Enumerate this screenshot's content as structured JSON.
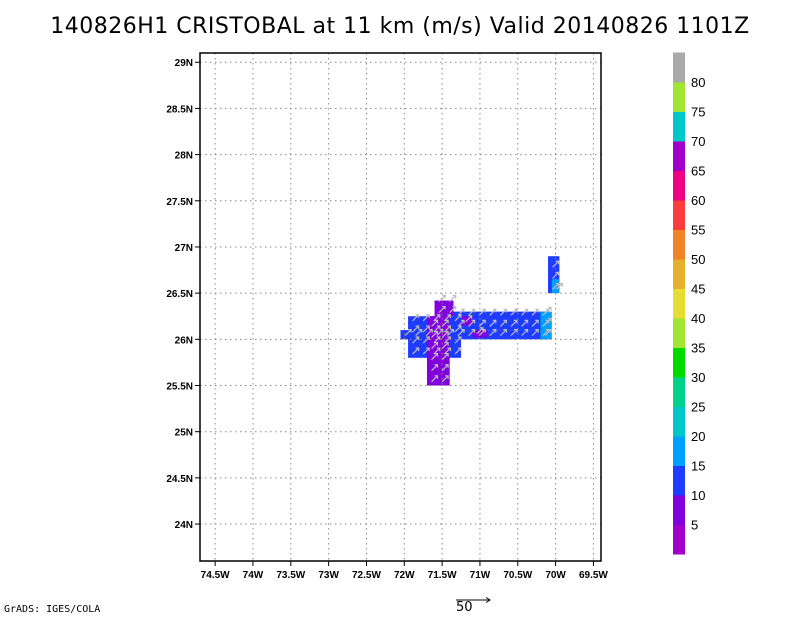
{
  "title": "140826H1 CRISTOBAL at 11 km (m/s) Valid 20140826 1101Z",
  "footer": "GrADS: IGES/COLA",
  "reference_vector_label": "50",
  "chart_data": {
    "type": "heatmap",
    "title": "140826H1 CRISTOBAL at 11 km (m/s) Valid 20140826 1101Z",
    "xlabel": "",
    "ylabel": "",
    "lon_range": [
      -74.7,
      -69.4
    ],
    "lat_range": [
      23.6,
      29.1
    ],
    "x_ticks": [
      {
        "lon": -74.5,
        "label": "74.5W"
      },
      {
        "lon": -74.0,
        "label": "74W"
      },
      {
        "lon": -73.5,
        "label": "73.5W"
      },
      {
        "lon": -73.0,
        "label": "73W"
      },
      {
        "lon": -72.5,
        "label": "72.5W"
      },
      {
        "lon": -72.0,
        "label": "72W"
      },
      {
        "lon": -71.5,
        "label": "71.5W"
      },
      {
        "lon": -71.0,
        "label": "71W"
      },
      {
        "lon": -70.5,
        "label": "70.5W"
      },
      {
        "lon": -70.0,
        "label": "70W"
      },
      {
        "lon": -69.5,
        "label": "69.5W"
      }
    ],
    "y_ticks": [
      {
        "lat": 24.0,
        "label": "24N"
      },
      {
        "lat": 24.5,
        "label": "24.5N"
      },
      {
        "lat": 25.0,
        "label": "25N"
      },
      {
        "lat": 25.5,
        "label": "25.5N"
      },
      {
        "lat": 26.0,
        "label": "26N"
      },
      {
        "lat": 26.5,
        "label": "26.5N"
      },
      {
        "lat": 27.0,
        "label": "27N"
      },
      {
        "lat": 27.5,
        "label": "27.5N"
      },
      {
        "lat": 28.0,
        "label": "28N"
      },
      {
        "lat": 28.5,
        "label": "28.5N"
      },
      {
        "lat": 29.0,
        "label": "29N"
      }
    ],
    "grid": "dotted",
    "colorbar": {
      "position": "right",
      "colors": [
        "#a000c8",
        "#8200dc",
        "#1e3cff",
        "#00a0ff",
        "#00c8c8",
        "#00d28c",
        "#00dc00",
        "#a0e632",
        "#e6dc32",
        "#e6af2d",
        "#f08228",
        "#fa3c3c",
        "#f00082",
        "#a000c8",
        "#00c8c8",
        "#a0e632",
        "#aaaaaa"
      ],
      "labels": [
        "5",
        "10",
        "15",
        "20",
        "25",
        "30",
        "35",
        "40",
        "45",
        "50",
        "55",
        "60",
        "65",
        "70",
        "75",
        "80"
      ]
    },
    "wind_regions": [
      {
        "lon": [
          -72.05,
          -71.25
        ],
        "lat": [
          26.0,
          26.1
        ],
        "speed": 12
      },
      {
        "lon": [
          -71.95,
          -71.25
        ],
        "lat": [
          25.8,
          26.25
        ],
        "speed": 12
      },
      {
        "lon": [
          -71.7,
          -71.4
        ],
        "lat": [
          25.5,
          26.25
        ],
        "speed": 7
      },
      {
        "lon": [
          -71.6,
          -71.35
        ],
        "lat": [
          26.25,
          26.42
        ],
        "speed": 7
      },
      {
        "lon": [
          -71.35,
          -70.1
        ],
        "lat": [
          26.1,
          26.3
        ],
        "speed": 12
      },
      {
        "lon": [
          -71.35,
          -70.1
        ],
        "lat": [
          26.0,
          26.1
        ],
        "speed": 12
      },
      {
        "lon": [
          -71.1,
          -70.9
        ],
        "lat": [
          26.02,
          26.1
        ],
        "speed": 7
      },
      {
        "lon": [
          -71.25,
          -71.1
        ],
        "lat": [
          26.15,
          26.25
        ],
        "speed": 7
      },
      {
        "lon": [
          -70.2,
          -70.05
        ],
        "lat": [
          26.0,
          26.3
        ],
        "speed": 17
      },
      {
        "lon": [
          -70.1,
          -69.95
        ],
        "lat": [
          26.5,
          26.9
        ],
        "speed": 12
      },
      {
        "lon": [
          -70.05,
          -69.95
        ],
        "lat": [
          26.5,
          26.65
        ],
        "speed": 17
      }
    ],
    "wind_vector_reference": {
      "speed": 50,
      "label": "50"
    }
  }
}
